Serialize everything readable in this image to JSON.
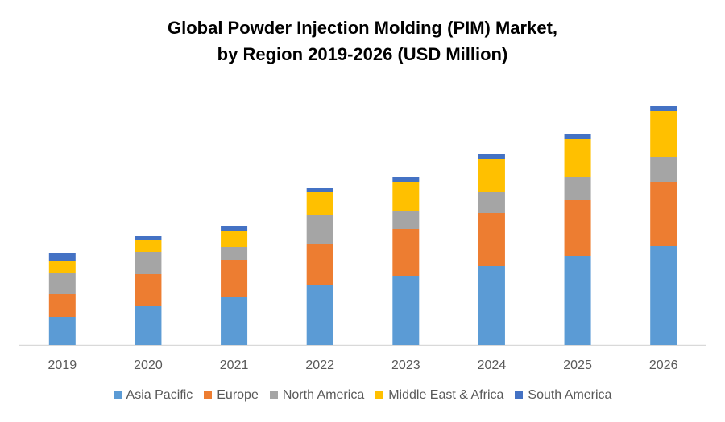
{
  "chart_data": {
    "type": "bar",
    "stacked": true,
    "title_lines": [
      "Global Powder Injection Molding (PIM) Market,",
      "by Region 2019-2026 (USD Million)"
    ],
    "xlabel": "",
    "ylabel": "",
    "categories": [
      "2019",
      "2020",
      "2021",
      "2022",
      "2023",
      "2024",
      "2025",
      "2026"
    ],
    "series": [
      {
        "name": "Asia Pacific",
        "color": "#5B9BD5",
        "values": [
          35,
          48,
          60,
          74,
          86,
          98,
          111,
          123
        ]
      },
      {
        "name": "Europe",
        "color": "#ED7D31",
        "values": [
          28,
          40,
          46,
          52,
          58,
          66,
          69,
          79
        ]
      },
      {
        "name": "North America",
        "color": "#A5A5A5",
        "values": [
          26,
          28,
          16,
          35,
          22,
          26,
          29,
          32
        ]
      },
      {
        "name": "Middle East & Africa",
        "color": "#FFC000",
        "values": [
          15,
          14,
          20,
          29,
          36,
          41,
          47,
          57
        ]
      },
      {
        "name": "South America",
        "color": "#4472C4",
        "values": [
          10,
          5,
          6,
          5,
          7,
          6,
          6,
          6
        ]
      }
    ],
    "ylim": [
      0,
      300
    ],
    "y_axis_visible": false,
    "grid": false,
    "legend_position": "bottom"
  }
}
